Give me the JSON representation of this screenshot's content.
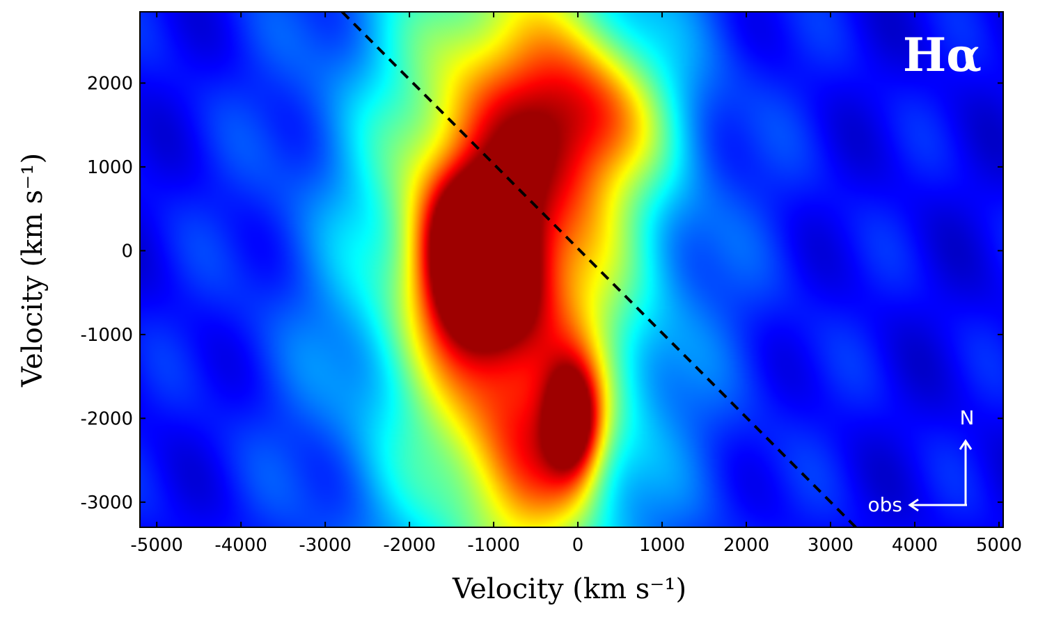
{
  "chart_data": {
    "type": "heatmap",
    "title": "",
    "panel_label": "Hα",
    "xlabel": "Velocity (km s⁻¹)",
    "ylabel": "Velocity (km s⁻¹)",
    "xlim": [
      -5200,
      5050
    ],
    "ylim": [
      -3300,
      2850
    ],
    "x_ticks": [
      -5000,
      -4000,
      -3000,
      -2000,
      -1000,
      0,
      1000,
      2000,
      3000,
      4000,
      5000
    ],
    "y_ticks": [
      -3000,
      -2000,
      -1000,
      0,
      1000,
      2000
    ],
    "colormap": "jet",
    "background_level": 0.12,
    "features": [
      {
        "name": "red-core",
        "x": -1200,
        "y": -100,
        "sx": 420,
        "sy": 650,
        "amp": 0.85
      },
      {
        "name": "red-knot-south",
        "x": -50,
        "y": -2050,
        "sx": 230,
        "sy": 480,
        "amp": 0.55
      },
      {
        "name": "yellow-band",
        "x": -800,
        "y": 200,
        "sx": 950,
        "sy": 2400,
        "amp": 0.55
      },
      {
        "name": "yellow-north",
        "x": 150,
        "y": 1600,
        "sx": 650,
        "sy": 650,
        "amp": 0.35
      },
      {
        "name": "cyan-halo",
        "x": -900,
        "y": 0,
        "sx": 1700,
        "sy": 3500,
        "amp": 0.22
      },
      {
        "name": "lower-column",
        "x": -500,
        "y": -2600,
        "sx": 550,
        "sy": 900,
        "amp": 0.25
      }
    ],
    "reference_line": {
      "style": "dashed",
      "color": "#000000",
      "points": [
        [
          -2800,
          2850
        ],
        [
          3300,
          -3300
        ]
      ]
    },
    "compass": {
      "north_label": "N",
      "observer_label": "obs"
    }
  }
}
